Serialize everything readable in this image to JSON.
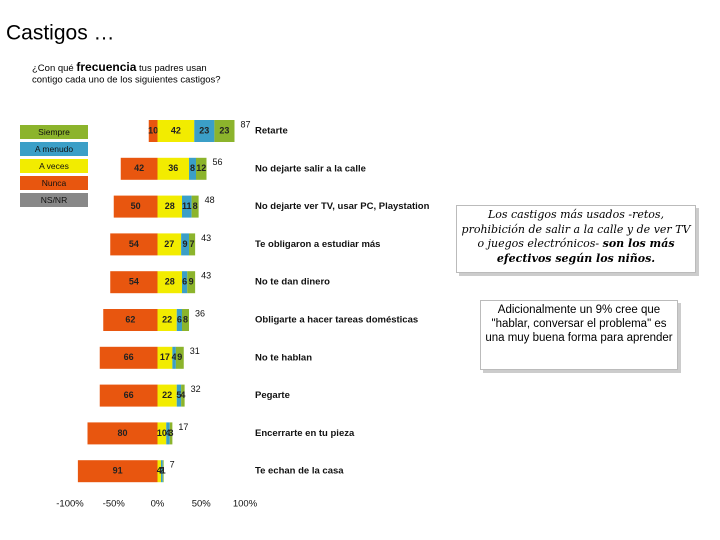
{
  "chart_data": {
    "type": "diverging_bar",
    "title": "Castigos …",
    "subtitle": [
      "¿Con qué ",
      "frecuencia",
      " tus padres usan",
      "contigo cada uno de  los siguientes castigos?"
    ],
    "categories": [
      "Retarte",
      "No dejarte salir a la calle",
      "No dejarte ver TV, usar PC, Playstation",
      "Te obligaron a estudiar más",
      "No te dan dinero",
      "Obligarte a hacer tareas domésticas",
      "No te hablan",
      "Pegarte",
      "Encerrarte en tu pieza",
      "Te echan de la casa"
    ],
    "series": [
      {
        "name": "Nunca",
        "color": "#e8560f",
        "side": "left",
        "values": [
          10,
          42,
          50,
          54,
          54,
          62,
          66,
          66,
          80,
          91
        ]
      },
      {
        "name": "A veces",
        "color": "#f2ec00",
        "values": [
          42,
          36,
          28,
          27,
          28,
          22,
          17,
          22,
          10,
          4
        ]
      },
      {
        "name": "A menudo",
        "color": "#3b9fc7",
        "values": [
          23,
          8,
          11,
          9,
          6,
          6,
          4,
          5,
          4,
          2
        ]
      },
      {
        "name": "Siempre",
        "color": "#8cb42c",
        "values": [
          23,
          12,
          8,
          7,
          9,
          8,
          9,
          4,
          3,
          1
        ]
      },
      {
        "name": "NS/NR",
        "color": "#888888",
        "values": [
          null,
          null,
          null,
          null,
          null,
          null,
          null,
          null,
          null,
          null
        ]
      }
    ],
    "totals": [
      87,
      56,
      48,
      43,
      43,
      36,
      31,
      32,
      17,
      7
    ],
    "xlim": [
      -100,
      100
    ],
    "xticks": [
      {
        "value": -100,
        "label": "-100%"
      },
      {
        "value": -50,
        "label": "-50%"
      },
      {
        "value": 0,
        "label": "0%"
      },
      {
        "value": 50,
        "label": "50%"
      },
      {
        "value": 100,
        "label": "100%"
      }
    ],
    "notes": [
      "Los castigos más usados -retos, prohibición de salir a la calle y de ver TV o juegos electrónicos- ",
      "son los más efectivos según los niños.",
      "Adicionalmente un 9% cree que \"hablar, conversar el problema\" es una muy buena forma para aprender"
    ]
  }
}
